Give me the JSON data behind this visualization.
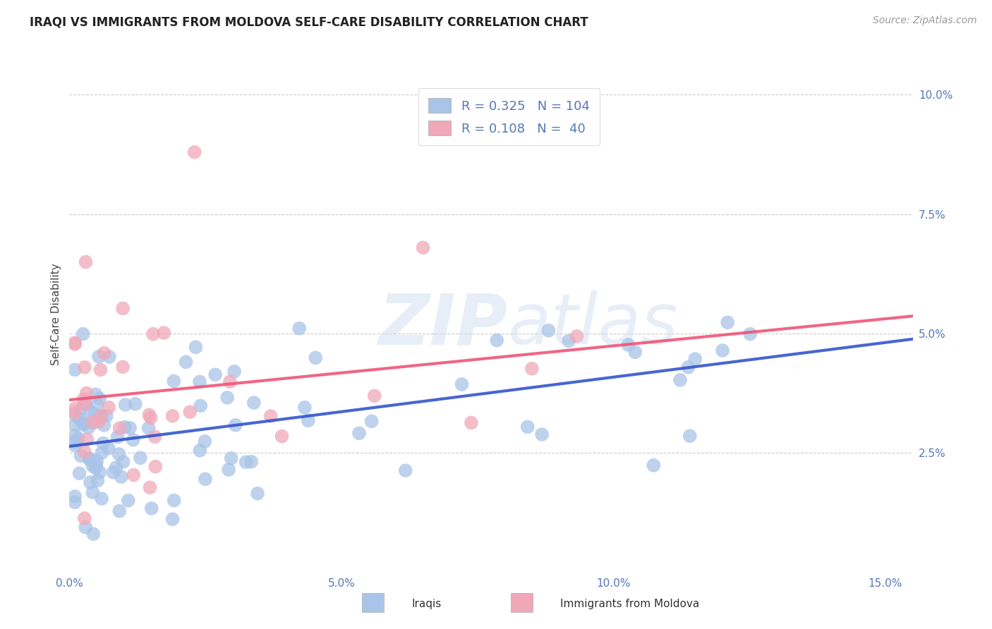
{
  "title": "IRAQI VS IMMIGRANTS FROM MOLDOVA SELF-CARE DISABILITY CORRELATION CHART",
  "source": "Source: ZipAtlas.com",
  "ylabel": "Self-Care Disability",
  "xlim": [
    0.0,
    0.155
  ],
  "ylim": [
    0.0,
    0.108
  ],
  "xtick_vals": [
    0.0,
    0.05,
    0.1,
    0.15
  ],
  "xticklabels": [
    "0.0%",
    "5.0%",
    "10.0%",
    "15.0%"
  ],
  "ytick_vals": [
    0.025,
    0.05,
    0.075,
    0.1
  ],
  "yticklabels": [
    "2.5%",
    "5.0%",
    "7.5%",
    "10.0%"
  ],
  "iraqi_color": "#a8c4e8",
  "moldova_color": "#f0a8b8",
  "iraqi_line_color": "#3355cc",
  "moldova_line_color": "#ee5577",
  "R_iraqi": 0.325,
  "N_iraqi": 104,
  "R_moldova": 0.108,
  "N_moldova": 40,
  "legend_label_iraqi": "Iraqis",
  "legend_label_moldova": "Immigrants from Moldova",
  "watermark_zip": "ZIP",
  "watermark_atlas": "atlas",
  "tick_color": "#5577bb",
  "grid_color": "#cccccc",
  "title_fontsize": 12,
  "source_fontsize": 10,
  "axis_fontsize": 11,
  "legend_fontsize": 13
}
